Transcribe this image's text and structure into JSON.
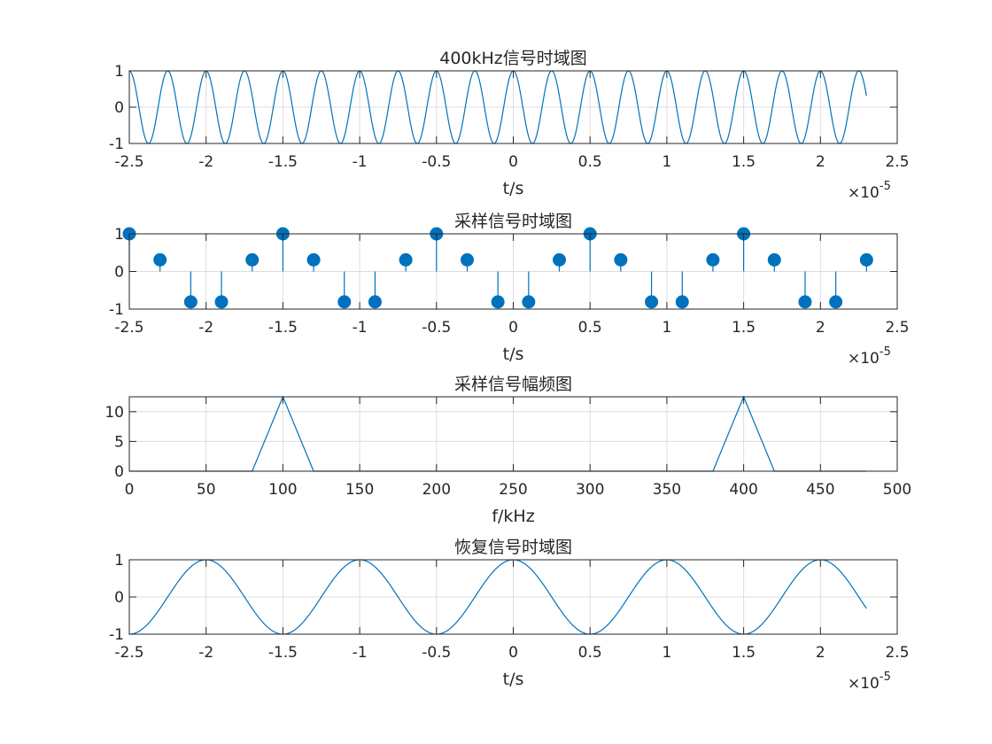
{
  "colors": {
    "series": "#0072bd",
    "axis": "#262626",
    "grid": "#dcdcdc",
    "background": "#ffffff"
  },
  "chart_data": [
    {
      "type": "line",
      "title": "400kHz信号时域图",
      "xlabel": "t/s",
      "ylabel": "",
      "exponent_label": "×10",
      "exponent_power": "-5",
      "x_scale": 1e-05,
      "xlim": [
        -2.5,
        2.5
      ],
      "ylim": [
        -1,
        1
      ],
      "xticks": [
        -2.5,
        -2,
        -1.5,
        -1,
        -0.5,
        0,
        0.5,
        1,
        1.5,
        2,
        2.5
      ],
      "xtick_labels": [
        "-2.5",
        "-2",
        "-1.5",
        "-1",
        "-0.5",
        "0",
        "0.5",
        "1",
        "1.5",
        "2",
        "2.5"
      ],
      "yticks": [
        1,
        0,
        -1
      ],
      "ytick_labels": [
        "1",
        "0",
        "-1"
      ],
      "grid": true,
      "signal": {
        "function": "cos",
        "frequency_hz": 400000,
        "amplitude": 1,
        "t_start": -2.5e-05,
        "t_end": 2.3e-05
      }
    },
    {
      "type": "stem",
      "title": "采样信号时域图",
      "xlabel": "t/s",
      "ylabel": "",
      "exponent_label": "×10",
      "exponent_power": "-5",
      "x_scale": 1e-05,
      "xlim": [
        -2.5,
        2.5
      ],
      "ylim": [
        -1,
        1
      ],
      "xticks": [
        -2.5,
        -2,
        -1.5,
        -1,
        -0.5,
        0,
        0.5,
        1,
        1.5,
        2,
        2.5
      ],
      "xtick_labels": [
        "-2.5",
        "-2",
        "-1.5",
        "-1",
        "-0.5",
        "0",
        "0.5",
        "1",
        "1.5",
        "2",
        "2.5"
      ],
      "yticks": [
        1,
        0,
        -1
      ],
      "ytick_labels": [
        "1",
        "0",
        "-1"
      ],
      "grid": true,
      "x": [
        -2.5,
        -2.3,
        -2.1,
        -1.9,
        -1.7,
        -1.5,
        -1.3,
        -1.1,
        -0.9,
        -0.7,
        -0.5,
        -0.3,
        -0.1,
        0.1,
        0.3,
        0.5,
        0.7,
        0.9,
        1.1,
        1.3,
        1.5,
        1.7,
        1.9,
        2.1,
        2.3
      ],
      "values": [
        1,
        0.309,
        -0.809,
        -0.809,
        0.309,
        1,
        0.309,
        -0.809,
        -0.809,
        0.309,
        1,
        0.309,
        -0.809,
        -0.809,
        0.309,
        1,
        0.309,
        -0.809,
        -0.809,
        0.309,
        1,
        0.309,
        -0.809,
        -0.809,
        0.309
      ]
    },
    {
      "type": "line",
      "title": "采样信号幅频图",
      "xlabel": "f/kHz",
      "ylabel": "",
      "xlim": [
        0,
        500
      ],
      "ylim": [
        0,
        12.5
      ],
      "xticks": [
        0,
        50,
        100,
        150,
        200,
        250,
        300,
        350,
        400,
        450,
        500
      ],
      "xtick_labels": [
        "0",
        "50",
        "100",
        "150",
        "200",
        "250",
        "300",
        "350",
        "400",
        "450",
        "500"
      ],
      "yticks": [
        10,
        5,
        0
      ],
      "ytick_labels": [
        "10",
        "5",
        "0"
      ],
      "grid": true,
      "x": [
        0,
        80,
        100,
        120,
        380,
        400,
        420,
        480
      ],
      "values": [
        0,
        0,
        12.5,
        0,
        0,
        12.5,
        0,
        0
      ]
    },
    {
      "type": "line",
      "title": "恢复信号时域图",
      "xlabel": "t/s",
      "ylabel": "",
      "exponent_label": "×10",
      "exponent_power": "-5",
      "x_scale": 1e-05,
      "xlim": [
        -2.5,
        2.5
      ],
      "ylim": [
        -1,
        1
      ],
      "xticks": [
        -2.5,
        -2,
        -1.5,
        -1,
        -0.5,
        0,
        0.5,
        1,
        1.5,
        2,
        2.5
      ],
      "xtick_labels": [
        "-2.5",
        "-2",
        "-1.5",
        "-1",
        "-0.5",
        "0",
        "0.5",
        "1",
        "1.5",
        "2",
        "2.5"
      ],
      "yticks": [
        1,
        0,
        -1
      ],
      "ytick_labels": [
        "1",
        "0",
        "-1"
      ],
      "grid": true,
      "signal": {
        "function": "cos",
        "frequency_hz": 100000,
        "amplitude": 1,
        "t_start": -2.5e-05,
        "t_end": 2.3e-05
      }
    }
  ]
}
